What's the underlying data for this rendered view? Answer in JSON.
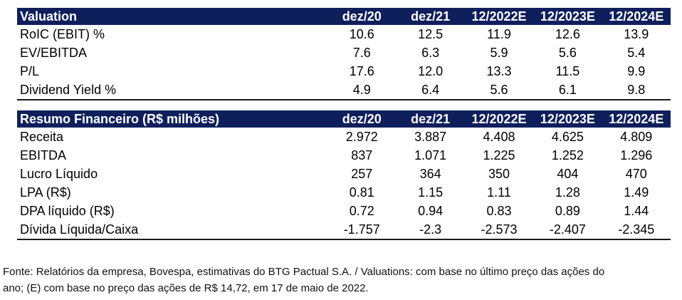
{
  "valuation": {
    "header": [
      "Valuation",
      "dez/20",
      "dez/21",
      "12/2022E",
      "12/2023E",
      "12/2024E"
    ],
    "rows": [
      [
        "RoIC (EBIT) %",
        "10.6",
        "12.5",
        "11.9",
        "12.6",
        "13.9"
      ],
      [
        "EV/EBITDA",
        "7.6",
        "6.3",
        "5.9",
        "5.6",
        "5.4"
      ],
      [
        "P/L",
        "17.6",
        "12.0",
        "13.3",
        "11.5",
        "9.9"
      ],
      [
        "Dividend Yield %",
        "4.9",
        "6.4",
        "5.6",
        "6.1",
        "9.8"
      ]
    ]
  },
  "resumo": {
    "header": [
      "Resumo Financeiro (R$ milhões)",
      "dez/20",
      "dez/21",
      "12/2022E",
      "12/2023E",
      "12/2024E"
    ],
    "rows": [
      [
        "Receita",
        "2.972",
        "3.887",
        "4.408",
        "4.625",
        "4.809"
      ],
      [
        "EBITDA",
        "837",
        "1.071",
        "1.225",
        "1.252",
        "1.296"
      ],
      [
        "Lucro Líquido",
        "257",
        "364",
        "350",
        "404",
        "470"
      ],
      [
        "LPA (R$)",
        "0.81",
        "1.15",
        "1.11",
        "1.28",
        "1.49"
      ],
      [
        "DPA líquido (R$)",
        "0.72",
        "0.94",
        "0.83",
        "0.89",
        "1.44"
      ],
      [
        "Dívida Líquida/Caixa",
        "-1.757",
        "-2.3",
        "-2.573",
        "-2.407",
        "-2.345"
      ]
    ]
  },
  "footnote": {
    "line1": "Fonte: Relatórios da empresa, Bovespa, estimativas do BTG Pactual S.A. / Valuations: com base no último preço das ações do",
    "line2": "ano; (E) com base no preço das ações de R$ 14,72, em 17 de maio de 2022."
  }
}
